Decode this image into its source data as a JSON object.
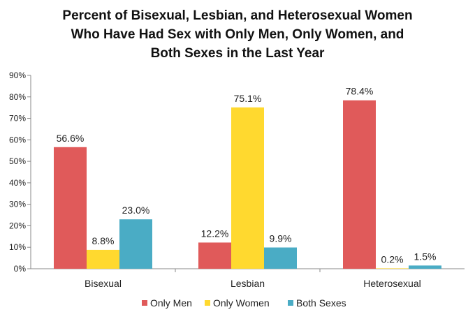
{
  "chart_data": {
    "type": "bar",
    "title_lines": [
      "Percent of Bisexual, Lesbian, and Heterosexual Women",
      "Who Have Had Sex with Only Men, Only Women, and",
      "Both Sexes in the Last Year"
    ],
    "categories": [
      "Bisexual",
      "Lesbian",
      "Heterosexual"
    ],
    "series": [
      {
        "name": "Only Men",
        "color": "#e05a5a",
        "values": [
          56.6,
          12.2,
          78.4
        ],
        "labels": [
          "56.6%",
          "12.2%",
          "78.4%"
        ]
      },
      {
        "name": "Only Women",
        "color": "#ffd92f",
        "values": [
          8.8,
          75.1,
          0.2
        ],
        "labels": [
          "8.8%",
          "75.1%",
          "0.2%"
        ]
      },
      {
        "name": "Both Sexes",
        "color": "#4aacc5",
        "values": [
          23.0,
          9.9,
          1.5
        ],
        "labels": [
          "23.0%",
          "9.9%",
          "1.5%"
        ]
      }
    ],
    "y_ticks": [
      "0%",
      "10%",
      "20%",
      "30%",
      "40%",
      "50%",
      "60%",
      "70%",
      "80%",
      "90%"
    ],
    "ylim": [
      0,
      90
    ],
    "grid": false,
    "legend_position": "bottom"
  }
}
